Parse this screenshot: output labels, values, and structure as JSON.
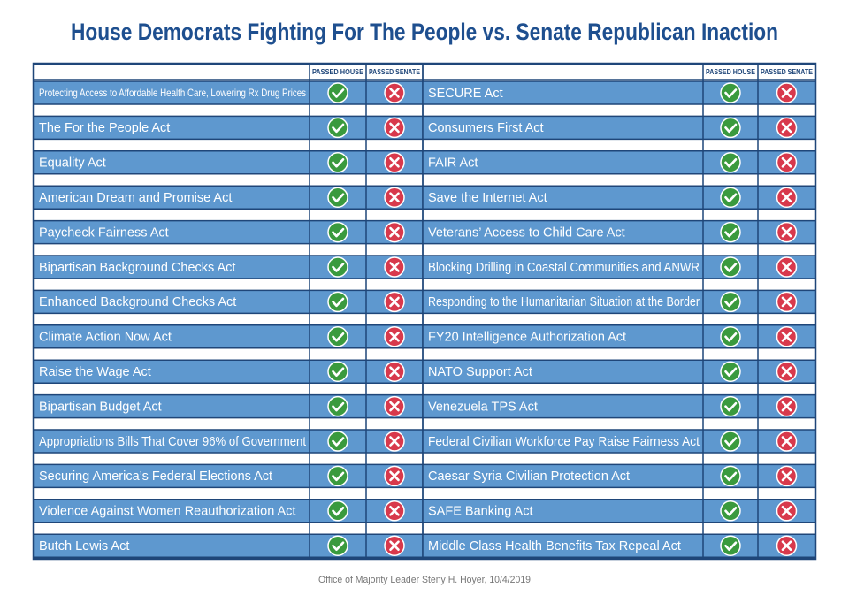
{
  "title": "House Democrats Fighting For The People vs. Senate Republican Inaction",
  "tables": [
    {
      "headers": [
        "PASSED HOUSE",
        "PASSED SENATE"
      ],
      "rows": [
        "Protecting Access to Affordable Health Care, Lowering Rx Drug Prices",
        "The For the People Act",
        "Equality Act",
        "American Dream and Promise Act",
        "Paycheck Fairness Act",
        "Bipartisan Background Checks Act",
        "Enhanced Background Checks Act",
        "Climate Action Now Act",
        "Raise the Wage Act",
        "Bipartisan Budget Act",
        "Appropriations Bills That Cover 96% of Government",
        "Securing America’s Federal Elections Act",
        "Violence Against Women Reauthorization Act",
        "Butch Lewis Act"
      ]
    },
    {
      "headers": [
        "PASSED HOUSE",
        "PASSED SENATE"
      ],
      "rows": [
        "SECURE Act",
        "Consumers First Act",
        "FAIR Act",
        "Save the Internet Act",
        "Veterans’ Access to Child Care Act",
        "Blocking Drilling in Coastal Communities and ANWR",
        "Responding to the Humanitarian Situation at the Border",
        "FY20 Intelligence Authorization Act",
        "NATO Support Act",
        "Venezuela TPS Act",
        "Federal Civilian Workforce Pay Raise Fairness Act",
        "Caesar Syria Civilian Protection Act",
        "SAFE Banking Act",
        "Middle Class Health Benefits Tax Repeal Act"
      ]
    }
  ],
  "footer": "Office of Majority Leader Steny H. Hoyer, 10/4/2019"
}
